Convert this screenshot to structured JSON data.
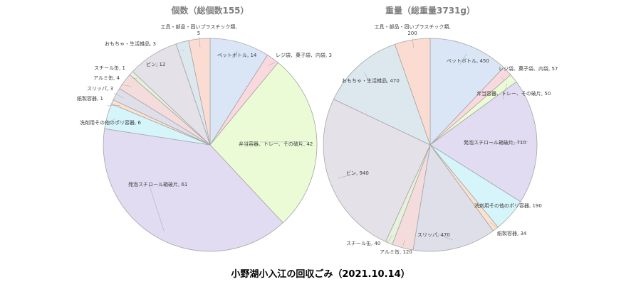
{
  "caption": "小野湖小入江の回収ごみ（2021.10.14）",
  "chart_data": [
    {
      "type": "pie",
      "title": "個数（総個数155）",
      "slices": [
        {
          "label": "ペットボトル",
          "value": 14,
          "color": "#dae6f6",
          "edge": "#9bb8e0"
        },
        {
          "label": "レジ袋、菓子袋、内袋",
          "value": 3,
          "color": "#f9d9dd",
          "edge": "#e899a6"
        },
        {
          "label": "弁当容器、トレー、その破片",
          "value": 42,
          "color": "#eafbd5",
          "edge": "#a6d16a"
        },
        {
          "label": "発泡スチロール箱破片",
          "value": 61,
          "color": "#e1dcf2",
          "edge": "#a699d6"
        },
        {
          "label": "洗剤用その他のポリ容器",
          "value": 6,
          "color": "#d5f5fa",
          "edge": "#5ed3ea"
        },
        {
          "label": "紙製容器",
          "value": 1,
          "color": "#fbe1cf",
          "edge": "#f0a470"
        },
        {
          "label": "スリッパ",
          "value": 3,
          "color": "#dedfe9",
          "edge": "#9a9bb4"
        },
        {
          "label": "アルミ缶",
          "value": 4,
          "color": "#f4dcdc",
          "edge": "#d49a9a"
        },
        {
          "label": "スチール缶",
          "value": 1,
          "color": "#e6f2dc",
          "edge": "#9fc987"
        },
        {
          "label": "ビン",
          "value": 12,
          "color": "#e5e1e9",
          "edge": "#a89fb4"
        },
        {
          "label": "おもちゃ・生活雑品",
          "value": 3,
          "color": "#dde8ee",
          "edge": "#8fb0c1"
        },
        {
          "label": "工具・部品・固いプラスチック類",
          "value": 5,
          "color": "#fbdcd3",
          "edge": "#f09c83"
        }
      ]
    },
    {
      "type": "pie",
      "title": "重量（総重量3731g）",
      "slices": [
        {
          "label": "ペットボトル",
          "value": 450,
          "color": "#dae6f6",
          "edge": "#9bb8e0"
        },
        {
          "label": "レジ袋、菓子袋、内袋",
          "value": 57,
          "color": "#f9d9dd",
          "edge": "#e899a6"
        },
        {
          "label": "弁当容器、トレー、その破片",
          "value": 50,
          "color": "#eafbd5",
          "edge": "#a6d16a"
        },
        {
          "label": "発泡スチロール箱破片",
          "value": 710,
          "color": "#e1dcf2",
          "edge": "#a699d6"
        },
        {
          "label": "洗剤用その他のポリ容器",
          "value": 190,
          "color": "#d5f5fa",
          "edge": "#5ed3ea"
        },
        {
          "label": "紙製容器",
          "value": 34,
          "color": "#fbe1cf",
          "edge": "#f0a470"
        },
        {
          "label": "スリッパ",
          "value": 470,
          "color": "#dedfe9",
          "edge": "#9a9bb4"
        },
        {
          "label": "アルミ缶",
          "value": 120,
          "color": "#f4dcdc",
          "edge": "#d49a9a"
        },
        {
          "label": "スチール缶",
          "value": 40,
          "color": "#e6f2dc",
          "edge": "#9fc987"
        },
        {
          "label": "ビン",
          "value": 940,
          "color": "#e5e1e9",
          "edge": "#a89fb4"
        },
        {
          "label": "おもちゃ・生活雑品",
          "value": 470,
          "color": "#dde8ee",
          "edge": "#8fb0c1"
        },
        {
          "label": "工具・部品・固いプラスチック類",
          "value": 200,
          "color": "#fbdcd3",
          "edge": "#f09c83"
        }
      ]
    }
  ]
}
